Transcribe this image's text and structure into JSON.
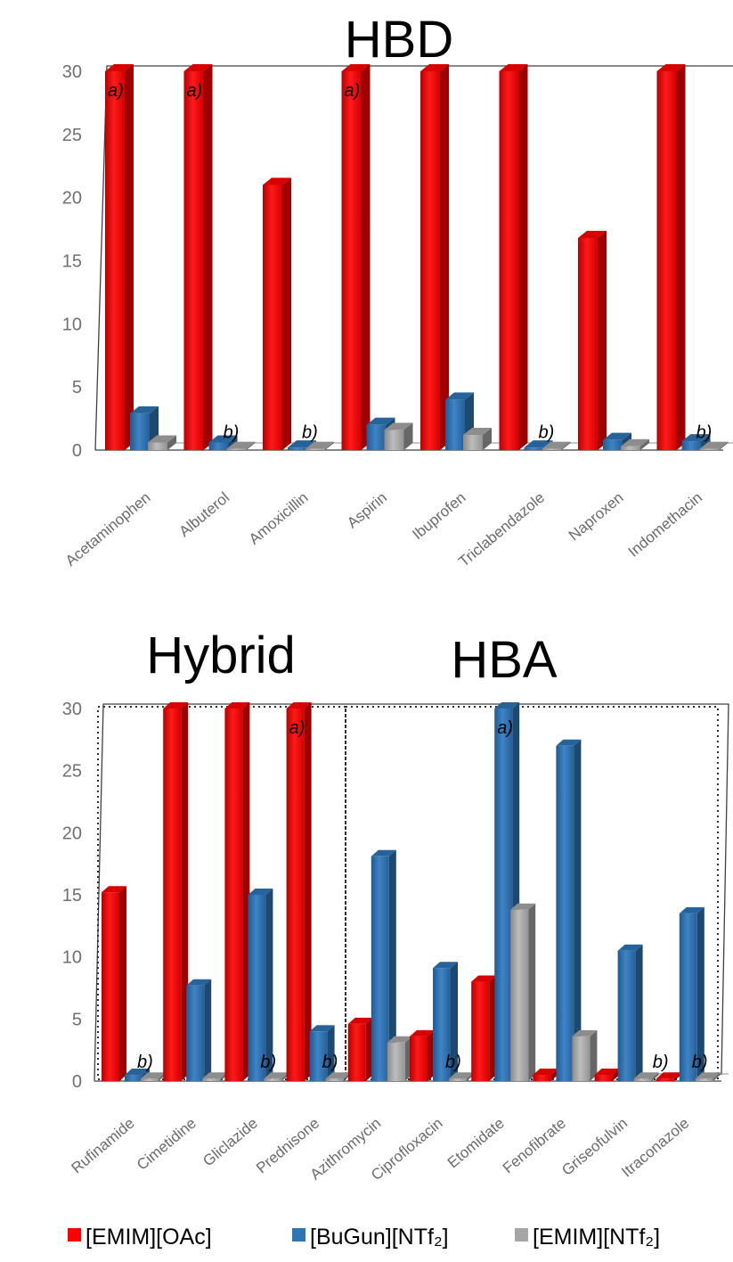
{
  "legend": [
    {
      "label": "[EMIM][OAc]",
      "color": "#ff0000"
    },
    {
      "label": "[BuGun][NTf₂]",
      "color": "#2e75b6"
    },
    {
      "label": "[EMIM][NTf₂]",
      "color": "#a6a6a6"
    }
  ],
  "chart_data": [
    {
      "type": "bar",
      "titles": [
        "HBD"
      ],
      "ylim": [
        0,
        30
      ],
      "yticks": [
        0,
        5,
        10,
        15,
        20,
        25,
        30
      ],
      "categories": [
        "Acetaminophen",
        "Albuterol",
        "Amoxicillin",
        "Aspirin",
        "Ibuprofen",
        "Triclabendazole",
        "Naproxen",
        "Indomethacin"
      ],
      "series": [
        {
          "name": "[EMIM][OAc]",
          "values": [
            30,
            30,
            21,
            30,
            30,
            30,
            16.8,
            30
          ]
        },
        {
          "name": "[BuGun][NTf₂]",
          "values": [
            2.9,
            0.6,
            0.2,
            2.0,
            4.0,
            0.2,
            0.8,
            0.7
          ]
        },
        {
          "name": "[EMIM][NTf₂]",
          "values": [
            0.6,
            0.1,
            0.1,
            1.6,
            1.2,
            0.1,
            0.3,
            0.1
          ]
        }
      ],
      "annotations": [
        {
          "category": 0,
          "series": 0,
          "text": "a)"
        },
        {
          "category": 1,
          "series": 0,
          "text": "a)"
        },
        {
          "category": 3,
          "series": 0,
          "text": "a)"
        },
        {
          "category": 1,
          "series": 2,
          "text": "b)"
        },
        {
          "category": 2,
          "series": 2,
          "text": "b)"
        },
        {
          "category": 5,
          "series": 2,
          "text": "b)"
        },
        {
          "category": 7,
          "series": 2,
          "text": "b)"
        }
      ]
    },
    {
      "type": "bar",
      "titles": [
        "Hybrid",
        "HBA"
      ],
      "ylim": [
        0,
        30
      ],
      "yticks": [
        0,
        5,
        10,
        15,
        20,
        25,
        30
      ],
      "categories": [
        "Rufinamide",
        "Cimetidine",
        "Gliclazide",
        "Prednisone",
        "Azithromycin",
        "Ciprofloxacin",
        "Etomidate",
        "Fenofibrate",
        "Griseofulvin",
        "Itraconazole"
      ],
      "groups": [
        {
          "title": "Hybrid",
          "categories": [
            "Rufinamide",
            "Cimetidine",
            "Gliclazide",
            "Prednisone"
          ]
        },
        {
          "title": "HBA",
          "categories": [
            "Azithromycin",
            "Ciprofloxacin",
            "Etomidate",
            "Fenofibrate",
            "Griseofulvin",
            "Itraconazole"
          ]
        }
      ],
      "series": [
        {
          "name": "[EMIM][OAc]",
          "values": [
            15.2,
            30,
            30,
            30,
            4.6,
            3.6,
            8.0,
            0.5,
            0.5,
            0.2
          ]
        },
        {
          "name": "[BuGun][NTf₂]",
          "values": [
            0.5,
            7.7,
            15.0,
            4.0,
            18.1,
            9.1,
            30,
            27.0,
            10.5,
            13.5
          ]
        },
        {
          "name": "[EMIM][NTf₂]",
          "values": [
            0.2,
            0.2,
            0.2,
            0.2,
            3.1,
            0.2,
            13.8,
            3.6,
            0.2,
            0.2
          ]
        }
      ],
      "annotations": [
        {
          "category": 3,
          "series": 0,
          "text": "a)"
        },
        {
          "category": 6,
          "series": 1,
          "text": "a)"
        },
        {
          "category": 0,
          "series": 2,
          "text": "b)"
        },
        {
          "category": 2,
          "series": 2,
          "text": "b)"
        },
        {
          "category": 3,
          "series": 2,
          "text": "b)"
        },
        {
          "category": 5,
          "series": 2,
          "text": "b)"
        },
        {
          "category": 9,
          "series": 0,
          "text": "b)"
        },
        {
          "category": 9,
          "series": 2,
          "text": "b)"
        }
      ]
    }
  ]
}
